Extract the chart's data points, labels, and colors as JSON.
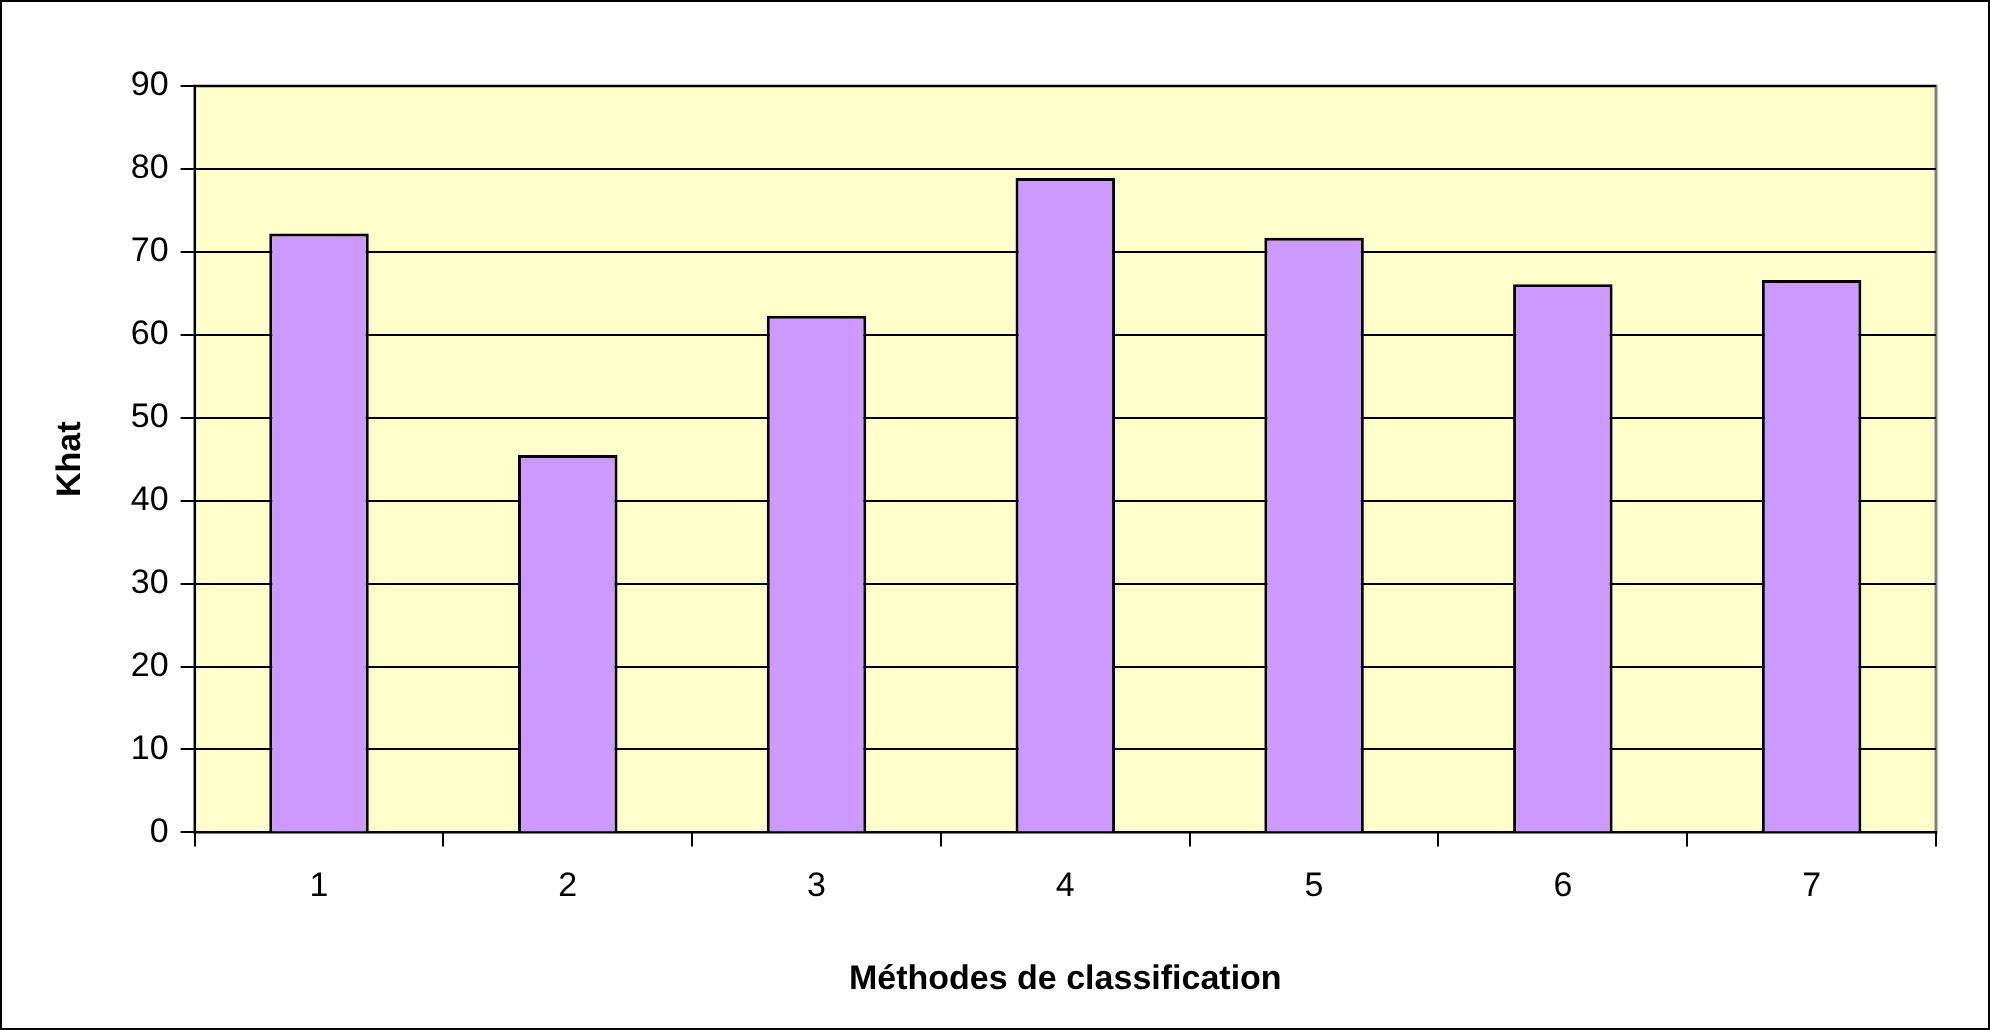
{
  "chart_data": {
    "type": "bar",
    "xlabel": "Méthodes de classification",
    "ylabel": "Khat",
    "categories": [
      "1",
      "2",
      "3",
      "4",
      "5",
      "6",
      "7"
    ],
    "values": [
      72.2,
      45.5,
      62.3,
      78.9,
      71.7,
      66.1,
      66.6
    ],
    "color": "#cc99ff",
    "ylim": [
      0,
      90
    ],
    "yticks": [
      0,
      10,
      20,
      30,
      40,
      50,
      60,
      70,
      80,
      90
    ],
    "grid": "y",
    "legend": false
  }
}
